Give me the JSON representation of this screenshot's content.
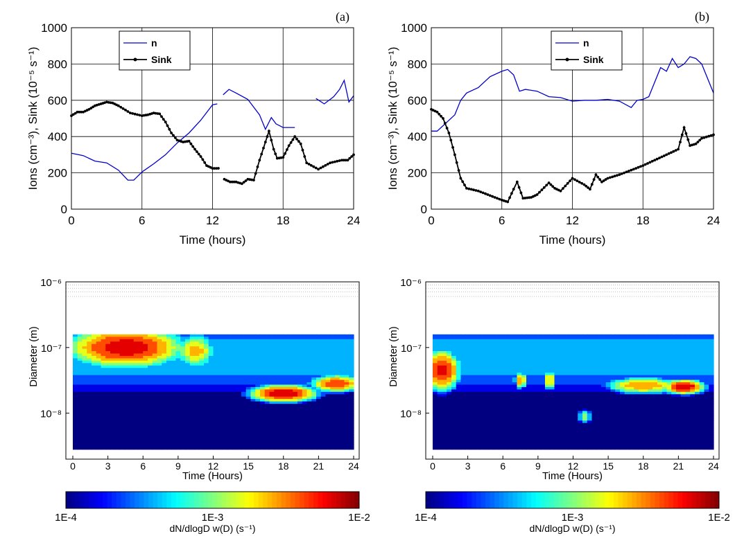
{
  "chart_data": [
    {
      "panel_label": "(a)",
      "type": "line",
      "xlabel": "Time (hours)",
      "ylabel": "Ions (cm⁻³), Sink (10⁻⁵ s⁻¹)",
      "xlim": [
        0,
        24
      ],
      "ylim": [
        0,
        1000
      ],
      "xticks": [
        0,
        6,
        12,
        18,
        24
      ],
      "yticks": [
        0,
        200,
        400,
        600,
        800,
        1000
      ],
      "grid": true,
      "legend_position": "top-center",
      "series": [
        {
          "name": "n",
          "color": "#0000cc",
          "marker": "none",
          "segments": [
            [
              [
                0,
                308
              ],
              [
                1,
                295
              ],
              [
                2,
                265
              ],
              [
                3,
                255
              ],
              [
                4,
                215
              ],
              [
                4.8,
                160
              ],
              [
                5.3,
                160
              ],
              [
                6,
                205
              ],
              [
                7,
                250
              ],
              [
                8,
                300
              ],
              [
                9,
                365
              ],
              [
                10,
                420
              ],
              [
                11,
                490
              ],
              [
                12,
                575
              ],
              [
                12.4,
                580
              ]
            ],
            [
              [
                12.9,
                630
              ],
              [
                13.4,
                660
              ],
              [
                14,
                640
              ],
              [
                15,
                605
              ],
              [
                16,
                520
              ],
              [
                16.5,
                440
              ],
              [
                17,
                505
              ],
              [
                17.4,
                470
              ],
              [
                18,
                450
              ],
              [
                19,
                450
              ]
            ],
            [
              [
                20.8,
                610
              ],
              [
                21.5,
                580
              ],
              [
                22.3,
                620
              ],
              [
                22.8,
                660
              ],
              [
                23.2,
                710
              ],
              [
                23.6,
                590
              ],
              [
                24,
                625
              ]
            ]
          ]
        },
        {
          "name": "Sink",
          "color": "#000000",
          "marker": "circle",
          "segments": [
            [
              [
                0,
                515
              ],
              [
                0.5,
                535
              ],
              [
                1,
                535
              ],
              [
                1.5,
                550
              ],
              [
                2,
                570
              ],
              [
                2.5,
                580
              ],
              [
                3,
                590
              ],
              [
                3.5,
                585
              ],
              [
                4,
                570
              ],
              [
                5,
                530
              ],
              [
                6,
                515
              ],
              [
                6.5,
                520
              ],
              [
                7,
                530
              ],
              [
                7.5,
                525
              ],
              [
                8,
                480
              ],
              [
                8.5,
                420
              ],
              [
                9,
                380
              ],
              [
                9.5,
                370
              ],
              [
                10,
                375
              ],
              [
                10.5,
                330
              ],
              [
                11,
                290
              ],
              [
                11.5,
                240
              ],
              [
                12,
                225
              ],
              [
                12.5,
                225
              ]
            ],
            [
              [
                13,
                165
              ],
              [
                13.5,
                150
              ],
              [
                14,
                150
              ],
              [
                14.5,
                140
              ],
              [
                15,
                165
              ],
              [
                15.5,
                160
              ],
              [
                16,
                270
              ],
              [
                16.5,
                370
              ],
              [
                16.8,
                430
              ],
              [
                17.2,
                330
              ],
              [
                17.5,
                280
              ],
              [
                18,
                285
              ],
              [
                18.5,
                350
              ],
              [
                19,
                400
              ],
              [
                19.5,
                360
              ],
              [
                20,
                255
              ],
              [
                21,
                220
              ],
              [
                22,
                255
              ],
              [
                23,
                270
              ],
              [
                23.5,
                270
              ],
              [
                24,
                300
              ]
            ]
          ]
        }
      ]
    },
    {
      "panel_label": "(b)",
      "type": "line",
      "xlabel": "Time (hours)",
      "ylabel": "Ions (cm⁻³), Sink (10⁻⁵ s⁻¹)",
      "xlim": [
        0,
        24
      ],
      "ylim": [
        0,
        1000
      ],
      "xticks": [
        0,
        6,
        12,
        18,
        24
      ],
      "yticks": [
        0,
        200,
        400,
        600,
        800,
        1000
      ],
      "grid": true,
      "legend_position": "top-center",
      "series": [
        {
          "name": "n",
          "color": "#0000cc",
          "marker": "none",
          "segments": [
            [
              [
                0,
                430
              ],
              [
                0.5,
                430
              ],
              [
                1,
                460
              ],
              [
                2,
                520
              ],
              [
                2.5,
                600
              ],
              [
                3,
                640
              ],
              [
                4,
                670
              ],
              [
                5,
                730
              ],
              [
                6,
                760
              ],
              [
                6.5,
                770
              ],
              [
                7,
                740
              ],
              [
                7.5,
                650
              ],
              [
                8,
                660
              ],
              [
                9,
                650
              ],
              [
                10,
                620
              ],
              [
                11,
                615
              ],
              [
                12,
                595
              ],
              [
                13,
                600
              ],
              [
                14,
                600
              ],
              [
                15,
                605
              ],
              [
                16,
                595
              ],
              [
                17,
                560
              ],
              [
                17.5,
                600
              ],
              [
                18,
                605
              ],
              [
                18.5,
                620
              ],
              [
                19,
                700
              ],
              [
                19.5,
                780
              ],
              [
                20,
                760
              ],
              [
                20.5,
                830
              ],
              [
                21,
                780
              ],
              [
                21.5,
                800
              ],
              [
                22,
                840
              ],
              [
                22.5,
                830
              ],
              [
                23,
                800
              ],
              [
                23.5,
                720
              ],
              [
                24,
                640
              ]
            ]
          ]
        },
        {
          "name": "Sink",
          "color": "#000000",
          "marker": "circle",
          "segments": [
            [
              [
                0,
                550
              ],
              [
                0.5,
                535
              ],
              [
                1,
                500
              ],
              [
                1.5,
                420
              ],
              [
                2,
                300
              ],
              [
                2.5,
                170
              ],
              [
                3,
                115
              ],
              [
                4,
                100
              ],
              [
                5,
                75
              ],
              [
                6,
                50
              ],
              [
                6.5,
                40
              ],
              [
                7,
                110
              ],
              [
                7.3,
                150
              ],
              [
                7.8,
                60
              ],
              [
                8.5,
                65
              ],
              [
                9,
                80
              ],
              [
                10,
                145
              ],
              [
                10.5,
                115
              ],
              [
                11,
                100
              ],
              [
                12,
                170
              ],
              [
                13,
                135
              ],
              [
                13.5,
                110
              ],
              [
                14,
                190
              ],
              [
                14.5,
                150
              ],
              [
                15,
                170
              ],
              [
                16,
                190
              ],
              [
                17,
                215
              ],
              [
                18,
                240
              ],
              [
                19,
                270
              ],
              [
                20,
                300
              ],
              [
                21,
                330
              ],
              [
                21.5,
                450
              ],
              [
                22,
                350
              ],
              [
                22.5,
                360
              ],
              [
                23,
                390
              ],
              [
                24,
                410
              ]
            ]
          ]
        }
      ]
    },
    {
      "type": "heatmap",
      "xlabel": "Time (Hours)",
      "ylabel": "Diameter (m)",
      "xticks": [
        0,
        3,
        6,
        9,
        12,
        15,
        18,
        21,
        24
      ],
      "yticks": [
        "10⁻⁶",
        "10⁻⁷",
        "10⁻⁸"
      ],
      "ylim_log10": [
        -8.7,
        -6
      ],
      "colorbar": {
        "label": "dN/dlogD w(D)  (s⁻¹)",
        "ticks": [
          "1E-4",
          "1E-3",
          "1E-2"
        ],
        "range_log10": [
          -4,
          -2
        ]
      },
      "hotspots": [
        {
          "t": 4.5,
          "logD": -7.0,
          "level": -2.15,
          "wt": 4.5,
          "wd": 0.28
        },
        {
          "t": 10.5,
          "logD": -7.05,
          "level": -2.6,
          "wt": 1.6,
          "wd": 0.25
        },
        {
          "t": 15.5,
          "logD": -7.1,
          "level": -3.3,
          "wt": 0.8,
          "wd": 0.2
        },
        {
          "t": 18.0,
          "logD": -7.7,
          "level": -2.1,
          "wt": 2.6,
          "wd": 0.12
        },
        {
          "t": 22.5,
          "logD": -7.55,
          "level": -2.3,
          "wt": 2.0,
          "wd": 0.12
        }
      ]
    },
    {
      "type": "heatmap",
      "xlabel": "Time (Hours)",
      "ylabel": "Diameter (m)",
      "xticks": [
        0,
        3,
        6,
        9,
        12,
        15,
        18,
        21,
        24
      ],
      "yticks": [
        "10⁻⁶",
        "10⁻⁷",
        "10⁻⁸"
      ],
      "ylim_log10": [
        -8.7,
        -6
      ],
      "colorbar": {
        "label": "dN/dlogD w(D)  (s⁻¹)",
        "ticks": [
          "1E-4",
          "1E-3",
          "1E-2"
        ],
        "range_log10": [
          -4,
          -2
        ]
      },
      "hotspots": [
        {
          "t": 0.8,
          "logD": -7.35,
          "level": -2.2,
          "wt": 1.4,
          "wd": 0.28
        },
        {
          "t": 7.5,
          "logD": -7.5,
          "level": -2.5,
          "wt": 0.5,
          "wd": 0.12
        },
        {
          "t": 10.0,
          "logD": -7.5,
          "level": -2.6,
          "wt": 0.5,
          "wd": 0.15
        },
        {
          "t": 13.0,
          "logD": -8.05,
          "level": -2.9,
          "wt": 0.6,
          "wd": 0.1
        },
        {
          "t": 18.0,
          "logD": -7.58,
          "level": -2.5,
          "wt": 3.0,
          "wd": 0.12
        },
        {
          "t": 21.5,
          "logD": -7.6,
          "level": -2.1,
          "wt": 1.6,
          "wd": 0.1
        }
      ]
    }
  ]
}
